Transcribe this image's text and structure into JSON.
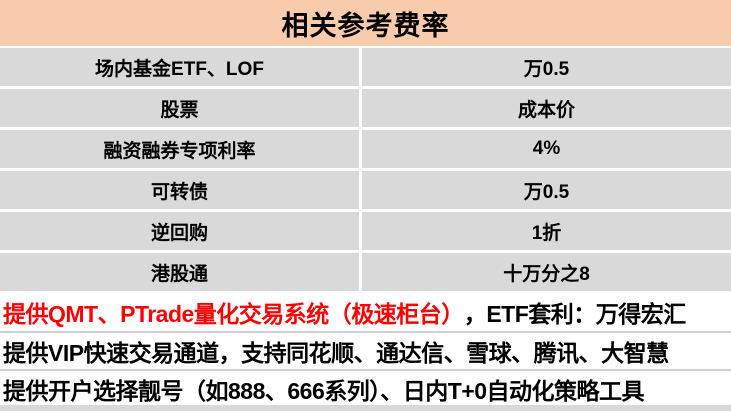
{
  "header": {
    "title": "相关参考费率"
  },
  "table": {
    "rows": [
      {
        "label": "场内基金ETF、LOF",
        "value": "万0.5"
      },
      {
        "label": "股票",
        "value": "成本价"
      },
      {
        "label": "融资融券专项利率",
        "value": "4%"
      },
      {
        "label": "可转债",
        "value": "万0.5"
      },
      {
        "label": "逆回购",
        "value": "1折"
      },
      {
        "label": "港股通",
        "value": "十万分之8"
      }
    ]
  },
  "footer": {
    "line1_red": "提供QMT、PTrade量化交易系统（极速柜台）",
    "line1_black": "，ETF套利：万得宏汇",
    "line2": "提供VIP快速交易通道，支持同花顺、通达信、雪球、腾讯、大智慧",
    "line3": "提供开户选择靓号（如888、666系列）、日内T+0自动化策略工具"
  },
  "colors": {
    "header_bg": "#F8CBAD",
    "cell_bg": "#D9D9D9",
    "gridline": "#FFFFFF",
    "footer_divider": "#D2D2D2",
    "highlight_red": "#FF0000",
    "text": "#000000"
  }
}
